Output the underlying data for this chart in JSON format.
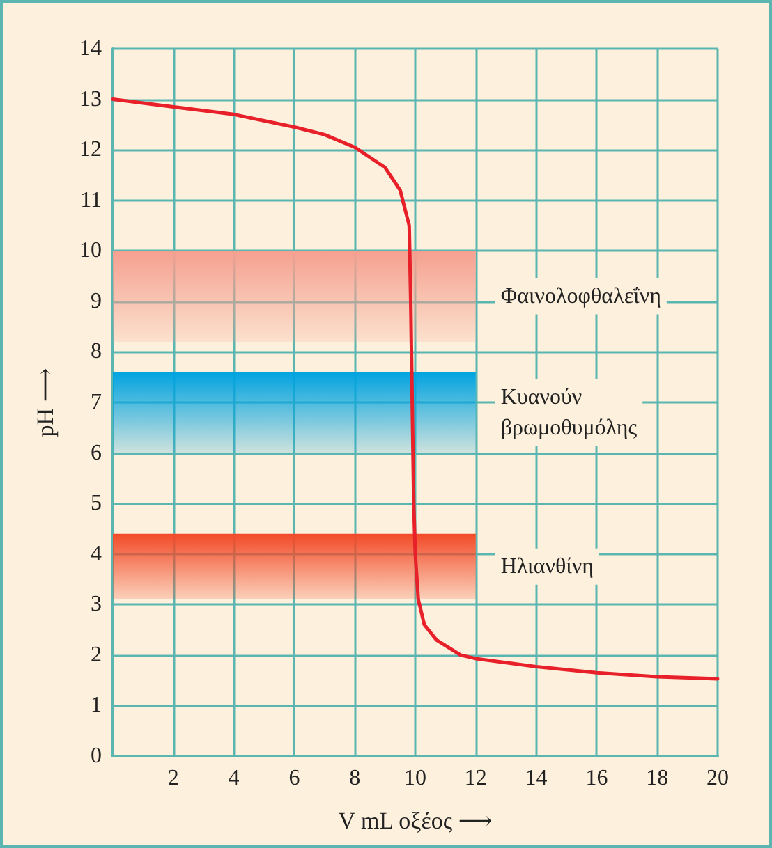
{
  "chart_data": {
    "type": "line",
    "xlabel": "V mL οξέος ⟶",
    "ylabel": "pH ⟶",
    "series": [
      {
        "color": "#e8202a",
        "x": [
          0,
          2,
          4,
          6,
          7,
          8,
          9,
          9.5,
          9.8,
          9.85,
          9.9,
          9.95,
          10,
          10.1,
          10.3,
          10.7,
          11.5,
          12,
          14,
          16,
          18,
          20
        ],
        "values": [
          13,
          12.85,
          12.7,
          12.45,
          12.3,
          12.05,
          11.65,
          11.2,
          10.5,
          9,
          7,
          5,
          4,
          3.1,
          2.6,
          2.3,
          2.0,
          1.93,
          1.77,
          1.65,
          1.57,
          1.53
        ]
      }
    ],
    "xlim": [
      0,
      20
    ],
    "xticks": [
      {
        "value": 0,
        "label": null
      },
      2,
      4,
      6,
      8,
      10,
      12,
      14,
      16,
      18,
      20
    ],
    "ylim": [
      0,
      14
    ],
    "yticks": [
      0,
      1,
      2,
      3,
      4,
      5,
      6,
      7,
      8,
      9,
      10,
      11,
      12,
      13,
      14
    ],
    "grid": true,
    "marker": "none",
    "line_style": "solid",
    "bands": [
      {
        "axis": "y",
        "from": 8.2,
        "to": 10,
        "label": "Φαινολοφθαλεΐνη",
        "color": "#f5a090"
      },
      {
        "axis": "y",
        "from": 6.0,
        "to": 7.6,
        "label": "Κυανούν βρωμοθυμόλης",
        "color": "#00a3e0"
      },
      {
        "axis": "y",
        "from": 3.1,
        "to": 4.4,
        "label": "Ηλιανθίνη",
        "color": "#f24a28"
      }
    ]
  }
}
